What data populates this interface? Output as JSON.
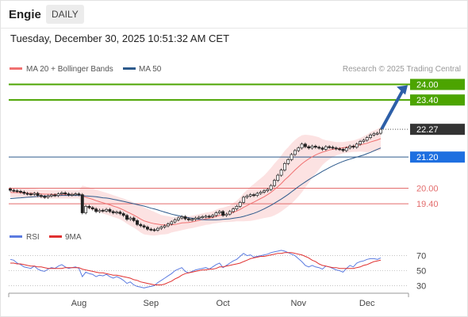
{
  "header": {
    "ticker": "Engie",
    "period": "DAILY",
    "datetime": "Tuesday, December 30, 2025 10:51:32 AM CET"
  },
  "colors": {
    "target_lines": "#4ca400",
    "support_lines": "#e36c6c",
    "ma50": "#2d5a8c",
    "current_price": "#333333",
    "pivot": "#1e6fe0",
    "bollinger_fill": "#fbd8d8",
    "ma20": "#f07070",
    "candle": "#222222",
    "rsi": "#5b7be0",
    "rsi_ma": "#e03030",
    "arrow": "#2d5fa8"
  },
  "chart_data": [
    {
      "type": "candlestick",
      "legend": [
        "MA 20 + Bollinger Bands",
        "MA 50"
      ],
      "legend_position": "top-left",
      "watermark": "Research © 2025 Trading Central",
      "x_tick_labels": [
        "Aug",
        "Sep",
        "Oct",
        "Nov",
        "Dec"
      ],
      "y_range": [
        18.7,
        24.2
      ],
      "levels": [
        {
          "value": 24.0,
          "label": "24.00",
          "kind": "target"
        },
        {
          "value": 23.4,
          "label": "23.40",
          "kind": "target"
        },
        {
          "value": 22.27,
          "label": "22.27",
          "kind": "current"
        },
        {
          "value": 21.2,
          "label": "21.20",
          "kind": "pivot"
        },
        {
          "value": 20.0,
          "label": "20.00",
          "kind": "support"
        },
        {
          "value": 19.4,
          "label": "19.40",
          "kind": "support"
        }
      ],
      "close": [
        19.92,
        19.9,
        19.88,
        19.85,
        19.8,
        19.78,
        19.76,
        19.8,
        19.72,
        19.68,
        19.65,
        19.7,
        19.74,
        19.72,
        19.78,
        19.82,
        19.78,
        19.74,
        19.76,
        19.78,
        19.75,
        19.05,
        19.3,
        19.25,
        19.2,
        19.1,
        19.15,
        19.12,
        19.18,
        19.1,
        19.05,
        19.08,
        19.02,
        18.95,
        18.8,
        18.85,
        18.75,
        18.6,
        18.55,
        18.5,
        18.42,
        18.4,
        18.38,
        18.45,
        18.5,
        18.55,
        18.62,
        18.7,
        18.78,
        18.85,
        18.9,
        18.82,
        18.78,
        18.8,
        18.85,
        18.88,
        18.9,
        18.92,
        18.9,
        18.95,
        19.05,
        19.1,
        18.95,
        19.0,
        19.1,
        19.2,
        19.3,
        19.45,
        19.65,
        19.7,
        19.75,
        19.72,
        19.8,
        19.85,
        19.9,
        19.95,
        20.1,
        20.3,
        20.5,
        20.7,
        20.95,
        21.1,
        21.3,
        21.45,
        21.55,
        21.7,
        21.6,
        21.55,
        21.62,
        21.58,
        21.55,
        21.5,
        21.6,
        21.58,
        21.55,
        21.52,
        21.5,
        21.45,
        21.55,
        21.62,
        21.58,
        21.7,
        21.8,
        21.85,
        21.95,
        22.05,
        22.1,
        22.12,
        22.27
      ],
      "ma20": [
        19.84,
        19.83,
        19.83,
        19.82,
        19.82,
        19.81,
        19.8,
        19.8,
        19.79,
        19.78,
        19.77,
        19.77,
        19.76,
        19.76,
        19.76,
        19.76,
        19.76,
        19.76,
        19.76,
        19.76,
        19.76,
        19.7,
        19.65,
        19.61,
        19.57,
        19.52,
        19.48,
        19.44,
        19.4,
        19.36,
        19.31,
        19.27,
        19.22,
        19.16,
        19.09,
        19.03,
        18.96,
        18.89,
        18.81,
        18.74,
        18.7,
        18.66,
        18.63,
        18.61,
        18.59,
        18.58,
        18.58,
        18.59,
        18.6,
        18.63,
        18.66,
        18.67,
        18.68,
        18.7,
        18.73,
        18.76,
        18.79,
        18.82,
        18.84,
        18.87,
        18.91,
        18.95,
        18.97,
        18.99,
        19.02,
        19.07,
        19.12,
        19.18,
        19.26,
        19.33,
        19.4,
        19.46,
        19.53,
        19.6,
        19.67,
        19.75,
        19.84,
        19.95,
        20.06,
        20.18,
        20.32,
        20.44,
        20.57,
        20.7,
        20.82,
        20.94,
        21.04,
        21.13,
        21.21,
        21.28,
        21.34,
        21.39,
        21.43,
        21.47,
        21.5,
        21.52,
        21.54,
        21.56,
        21.58,
        21.6,
        21.62,
        21.64,
        21.67,
        21.7,
        21.73,
        21.78,
        21.82,
        21.86,
        21.91
      ],
      "bb_width": [
        0.18,
        0.18,
        0.18,
        0.18,
        0.18,
        0.18,
        0.17,
        0.17,
        0.17,
        0.17,
        0.17,
        0.17,
        0.16,
        0.16,
        0.16,
        0.16,
        0.16,
        0.16,
        0.16,
        0.16,
        0.16,
        0.4,
        0.42,
        0.42,
        0.42,
        0.42,
        0.42,
        0.42,
        0.42,
        0.42,
        0.42,
        0.42,
        0.42,
        0.44,
        0.46,
        0.48,
        0.48,
        0.5,
        0.52,
        0.52,
        0.5,
        0.48,
        0.46,
        0.42,
        0.38,
        0.36,
        0.34,
        0.3,
        0.28,
        0.28,
        0.28,
        0.26,
        0.24,
        0.24,
        0.24,
        0.24,
        0.24,
        0.24,
        0.24,
        0.24,
        0.26,
        0.28,
        0.28,
        0.3,
        0.32,
        0.36,
        0.4,
        0.46,
        0.54,
        0.6,
        0.66,
        0.7,
        0.74,
        0.78,
        0.82,
        0.88,
        0.94,
        1.0,
        1.04,
        1.08,
        1.12,
        1.14,
        1.16,
        1.16,
        1.14,
        1.1,
        1.02,
        0.92,
        0.82,
        0.72,
        0.62,
        0.5,
        0.42,
        0.36,
        0.3,
        0.26,
        0.24,
        0.22,
        0.22,
        0.22,
        0.22,
        0.24,
        0.26,
        0.3,
        0.34,
        0.38,
        0.4,
        0.42,
        0.44
      ],
      "ma50": [
        19.6,
        19.61,
        19.62,
        19.63,
        19.64,
        19.65,
        19.66,
        19.67,
        19.68,
        19.69,
        19.7,
        19.7,
        19.71,
        19.71,
        19.71,
        19.72,
        19.72,
        19.72,
        19.72,
        19.72,
        19.72,
        19.71,
        19.7,
        19.69,
        19.68,
        19.67,
        19.65,
        19.63,
        19.62,
        19.6,
        19.57,
        19.55,
        19.52,
        19.49,
        19.46,
        19.43,
        19.4,
        19.37,
        19.34,
        19.31,
        19.27,
        19.23,
        19.2,
        19.16,
        19.12,
        19.08,
        19.04,
        19.0,
        18.97,
        18.94,
        18.91,
        18.88,
        18.86,
        18.84,
        18.82,
        18.8,
        18.79,
        18.78,
        18.78,
        18.78,
        18.78,
        18.79,
        18.8,
        18.81,
        18.82,
        18.84,
        18.86,
        18.88,
        18.91,
        18.95,
        18.99,
        19.03,
        19.08,
        19.14,
        19.2,
        19.27,
        19.34,
        19.42,
        19.5,
        19.58,
        19.67,
        19.76,
        19.86,
        19.96,
        20.06,
        20.15,
        20.24,
        20.33,
        20.41,
        20.49,
        20.57,
        20.65,
        20.72,
        20.79,
        20.86,
        20.92,
        20.98,
        21.03,
        21.08,
        21.12,
        21.16,
        21.2,
        21.24,
        21.28,
        21.33,
        21.38,
        21.44,
        21.5,
        21.55
      ]
    },
    {
      "type": "line",
      "legend": [
        "RSI",
        "9MA"
      ],
      "legend_position": "top-left",
      "y_range": [
        22,
        78
      ],
      "y_tick_labels": [
        "70",
        "50",
        "30"
      ],
      "rsi": [
        65,
        64,
        60,
        58,
        55,
        54,
        53,
        56,
        52,
        50,
        49,
        52,
        54,
        53,
        56,
        58,
        55,
        53,
        54,
        55,
        53,
        42,
        48,
        46,
        45,
        42,
        44,
        43,
        45,
        42,
        40,
        42,
        40,
        37,
        33,
        35,
        31,
        29,
        28,
        27,
        28,
        29,
        30,
        34,
        37,
        40,
        43,
        46,
        50,
        52,
        54,
        49,
        47,
        49,
        51,
        52,
        53,
        54,
        52,
        55,
        58,
        60,
        54,
        57,
        60,
        63,
        65,
        69,
        73,
        70,
        71,
        68,
        69,
        70,
        71,
        72,
        74,
        75,
        76,
        77,
        76,
        74,
        72,
        70,
        66,
        62,
        57,
        55,
        57,
        55,
        54,
        52,
        56,
        55,
        53,
        51,
        50,
        48,
        53,
        57,
        55,
        60,
        62,
        63,
        65,
        66,
        66,
        65,
        67
      ],
      "rsi_ma": [
        60,
        60,
        59,
        59,
        58,
        57,
        56,
        56,
        55,
        55,
        54,
        53,
        53,
        53,
        53,
        53,
        54,
        54,
        54,
        54,
        54,
        52,
        51,
        50,
        49,
        48,
        47,
        47,
        46,
        45,
        44,
        44,
        43,
        42,
        41,
        40,
        38,
        37,
        35,
        34,
        33,
        32,
        31,
        31,
        31,
        32,
        34,
        36,
        39,
        41,
        44,
        46,
        47,
        48,
        49,
        50,
        51,
        51,
        52,
        52,
        53,
        55,
        55,
        56,
        57,
        58,
        59,
        60,
        62,
        64,
        66,
        67,
        68,
        69,
        69,
        70,
        71,
        72,
        73,
        73,
        74,
        74,
        74,
        73,
        72,
        71,
        69,
        67,
        64,
        62,
        59,
        57,
        56,
        55,
        54,
        54,
        53,
        53,
        53,
        53,
        53,
        54,
        55,
        57,
        58,
        60,
        62,
        63,
        64
      ]
    }
  ]
}
